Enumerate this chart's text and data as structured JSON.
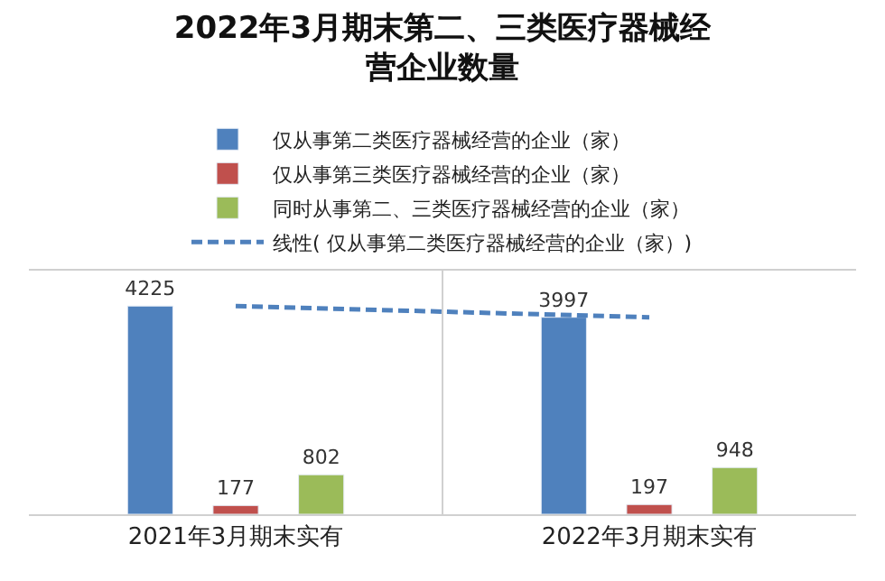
{
  "chart_data": {
    "type": "bar",
    "title": "2022年3月期末第二、三类医疗器械经营企业数量",
    "categories": [
      "2021年3月期末实有",
      "2022年3月期末实有"
    ],
    "legend": "top",
    "grid": "x",
    "tick_labels": "x",
    "series": [
      {
        "name": "仅从事第二类医疗器械经营的企业（家）",
        "color": "#4f81bd",
        "values": [
          4225,
          3997
        ],
        "value_labels": [
          "4225",
          "3997"
        ]
      },
      {
        "name": "仅从事第三类医疗器械经营的企业（家）",
        "color": "#c0504d",
        "values": [
          177,
          197
        ],
        "value_labels": [
          "177",
          "197"
        ]
      },
      {
        "name": "同时从事第二、三类医疗器械经营的企业（家）",
        "color": "#9bbb59",
        "values": [
          802,
          948
        ],
        "value_labels": [
          "802",
          "948"
        ]
      },
      {
        "type": "line",
        "name": "线性( 仅从事第二类医疗器械经营的企业（家）)",
        "color": "#4f81bd",
        "values": [
          4225,
          3997
        ],
        "line_style": "dashed",
        "marker": "none"
      }
    ]
  }
}
